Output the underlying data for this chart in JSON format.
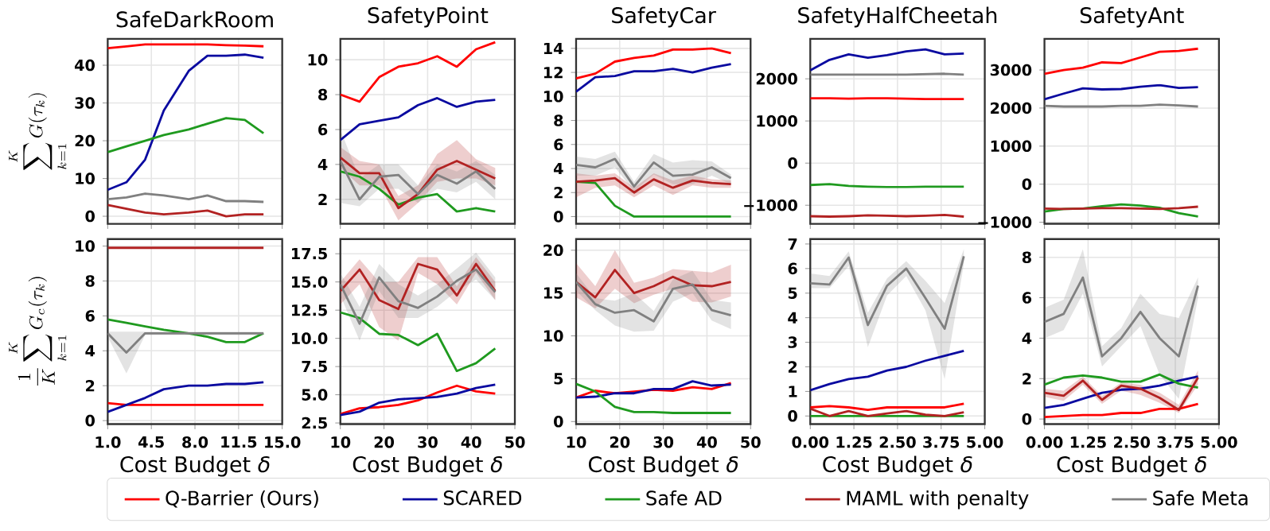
{
  "chart_data": [
    {
      "type": "line",
      "title": "SafeDarkRoom",
      "ylabel": "\\sum_{k=1}^{K} G(\\tau_k)",
      "grid": true,
      "tick_labels": "y",
      "xlim": [
        1,
        15
      ],
      "xticks": [
        1,
        4.5,
        8,
        11.5,
        15
      ],
      "ylim": [
        -2,
        47
      ],
      "yticks": [
        0,
        10,
        20,
        30,
        40
      ],
      "x": [
        1,
        2.5,
        4,
        5.5,
        7.5,
        9,
        10.5,
        12,
        13.5
      ],
      "series": [
        {
          "color": "#ff0000",
          "values": [
            44.5,
            45,
            45.5,
            45.5,
            45.5,
            45.5,
            45.3,
            45.2,
            45
          ]
        },
        {
          "color": "#0a0aa0",
          "values": [
            7,
            9,
            15,
            28,
            38.5,
            42.5,
            42.5,
            42.8,
            42
          ]
        },
        {
          "color": "#1f9a1f",
          "values": [
            17,
            18.5,
            20,
            21.5,
            23,
            24.5,
            26,
            25.5,
            22
          ]
        },
        {
          "color": "#b22222",
          "values": [
            3,
            2,
            1,
            0.5,
            1,
            1.5,
            0,
            0.5,
            0.5
          ]
        },
        {
          "color": "#808080",
          "values": [
            4.5,
            5,
            6,
            5.5,
            4.5,
            5.5,
            4,
            4,
            3.8
          ]
        }
      ]
    },
    {
      "type": "line",
      "title": "SafetyPoint",
      "grid": true,
      "tick_labels": "y",
      "xlim": [
        10,
        50
      ],
      "xticks": [
        10,
        20,
        30,
        40,
        50
      ],
      "ylim": [
        0.6,
        11.2
      ],
      "yticks": [
        2,
        4,
        6,
        8,
        10
      ],
      "x": [
        10,
        14.4,
        18.9,
        23.3,
        27.8,
        32.2,
        36.7,
        41.1,
        45.5
      ],
      "series": [
        {
          "color": "#ff0000",
          "values": [
            8,
            7.6,
            9,
            9.6,
            9.8,
            10.2,
            9.6,
            10.6,
            11
          ]
        },
        {
          "color": "#0a0aa0",
          "values": [
            5.4,
            6.3,
            6.5,
            6.7,
            7.4,
            7.8,
            7.3,
            7.6,
            7.7
          ]
        },
        {
          "color": "#1f9a1f",
          "values": [
            3.6,
            3.3,
            2.6,
            1.7,
            2.1,
            2.3,
            1.3,
            1.5,
            1.3
          ]
        },
        {
          "color": "#b22222",
          "values": [
            4.4,
            3.5,
            3.5,
            1.5,
            2.3,
            3.7,
            4.2,
            3.7,
            3.2
          ],
          "lower": [
            3.8,
            2.8,
            2.8,
            0.8,
            1.8,
            3,
            3.2,
            3.2,
            2.8
          ],
          "upper": [
            5,
            4.2,
            4,
            2.2,
            2.8,
            4.6,
            5.4,
            4.3,
            3.8
          ]
        },
        {
          "color": "#808080",
          "values": [
            4.2,
            2,
            3.3,
            3.4,
            2.3,
            3.4,
            2.9,
            3.6,
            2.6
          ],
          "lower": [
            1.8,
            1.6,
            2.6,
            2.6,
            1.8,
            2.6,
            2.4,
            3,
            2
          ],
          "upper": [
            6,
            3.2,
            4,
            4,
            2.8,
            4,
            3.6,
            4.2,
            3.4
          ]
        }
      ]
    },
    {
      "type": "line",
      "title": "SafetyCar",
      "grid": true,
      "tick_labels": "y",
      "xlim": [
        10,
        50
      ],
      "xticks": [
        10,
        20,
        30,
        40,
        50
      ],
      "ylim": [
        -0.6,
        14.8
      ],
      "yticks": [
        0,
        2,
        4,
        6,
        8,
        10,
        12,
        14
      ],
      "x": [
        10,
        14.4,
        18.9,
        23.3,
        27.8,
        32.2,
        36.7,
        41.1,
        45.5
      ],
      "series": [
        {
          "color": "#ff0000",
          "values": [
            11.5,
            11.9,
            12.9,
            13.2,
            13.4,
            13.9,
            13.9,
            14,
            13.6
          ]
        },
        {
          "color": "#0a0aa0",
          "values": [
            10.4,
            11.6,
            11.7,
            12.1,
            12.1,
            12.3,
            12,
            12.4,
            12.7
          ]
        },
        {
          "color": "#1f9a1f",
          "values": [
            2.9,
            2.8,
            0.9,
            0,
            0,
            0,
            0,
            0,
            0
          ]
        },
        {
          "color": "#b22222",
          "values": [
            2.9,
            3,
            3.2,
            2,
            3.1,
            2.4,
            3,
            2.8,
            2.7
          ],
          "lower": [
            1.6,
            2.4,
            2.6,
            1.6,
            2.6,
            1.8,
            2.6,
            2.4,
            2.4
          ],
          "upper": [
            3.6,
            3.4,
            3.6,
            2.4,
            3.6,
            3,
            3.4,
            3.1,
            3
          ]
        },
        {
          "color": "#808080",
          "values": [
            4.3,
            4.1,
            4.8,
            2.5,
            4.5,
            3.4,
            3.5,
            4.1,
            3.2
          ],
          "lower": [
            3.4,
            3.4,
            4.1,
            2.1,
            3.5,
            2.7,
            2.7,
            3.4,
            2.7
          ],
          "upper": [
            5,
            4.8,
            5.4,
            2.9,
            5.2,
            4.5,
            4.7,
            4.6,
            3.5
          ]
        }
      ]
    },
    {
      "type": "line",
      "title": "SafetyHalfCheetah",
      "grid": true,
      "tick_labels": "y",
      "xlim": [
        0,
        5
      ],
      "xticks": [
        0,
        1.25,
        2.5,
        3.75,
        5
      ],
      "ylim": [
        -1440,
        2950
      ],
      "yticks": [
        {
          "value": -1000,
          "label": "−1000"
        },
        0,
        1000,
        2000
      ],
      "x": [
        0,
        0.55,
        1.1,
        1.65,
        2.2,
        2.75,
        3.3,
        3.85,
        4.4
      ],
      "series": [
        {
          "color": "#ff0000",
          "values": [
            1540,
            1540,
            1530,
            1540,
            1540,
            1530,
            1520,
            1520,
            1520
          ]
        },
        {
          "color": "#0a0aa0",
          "values": [
            2200,
            2450,
            2580,
            2500,
            2560,
            2650,
            2700,
            2580,
            2600
          ]
        },
        {
          "color": "#1f9a1f",
          "values": [
            -520,
            -500,
            -540,
            -560,
            -570,
            -570,
            -560,
            -560,
            -560
          ]
        },
        {
          "color": "#b22222",
          "values": [
            -1260,
            -1270,
            -1260,
            -1240,
            -1250,
            -1260,
            -1250,
            -1230,
            -1270
          ]
        },
        {
          "color": "#808080",
          "values": [
            2100,
            2100,
            2100,
            2100,
            2100,
            2100,
            2110,
            2120,
            2100
          ]
        }
      ]
    },
    {
      "type": "line",
      "title": "SafetyAnt",
      "grid": true,
      "tick_labels": "y",
      "xlim": [
        0,
        5
      ],
      "xticks": [
        0,
        1.25,
        2.5,
        3.75,
        5
      ],
      "ylim": [
        -1040,
        3820
      ],
      "yticks": [
        {
          "value": -1000,
          "label": "−1000"
        },
        0,
        1000,
        2000,
        3000
      ],
      "x": [
        0,
        0.55,
        1.1,
        1.65,
        2.2,
        2.75,
        3.3,
        3.85,
        4.4
      ],
      "series": [
        {
          "color": "#ff0000",
          "values": [
            2900,
            3000,
            3060,
            3200,
            3180,
            3330,
            3480,
            3500,
            3560
          ]
        },
        {
          "color": "#0a0aa0",
          "values": [
            2230,
            2380,
            2520,
            2490,
            2500,
            2560,
            2600,
            2530,
            2550
          ]
        },
        {
          "color": "#1f9a1f",
          "values": [
            -720,
            -650,
            -640,
            -580,
            -530,
            -560,
            -620,
            -760,
            -850
          ]
        },
        {
          "color": "#b22222",
          "values": [
            -640,
            -650,
            -640,
            -630,
            -630,
            -640,
            -650,
            -630,
            -590
          ]
        },
        {
          "color": "#808080",
          "values": [
            2060,
            2040,
            2040,
            2040,
            2060,
            2060,
            2090,
            2070,
            2040
          ]
        }
      ]
    },
    {
      "type": "line",
      "xlabel": "Cost Budget *δ*",
      "ylabel": "\\frac{1}{K}\\sum_{k=1}^{K} G_c(\\tau_k)",
      "grid": true,
      "legend": "bottom",
      "xlim": [
        1,
        15
      ],
      "xticks": [
        {
          "value": 1,
          "label": "1.0"
        },
        4.5,
        {
          "value": 8,
          "label": "8.0"
        },
        11.5,
        {
          "value": 15,
          "label": "15.0"
        }
      ],
      "ylim": [
        -0.2,
        10.4
      ],
      "yticks": [
        0,
        2,
        4,
        6,
        8,
        10
      ],
      "x": [
        1,
        2.5,
        4,
        5.5,
        7.5,
        9,
        10.5,
        12,
        13.5
      ],
      "series": [
        {
          "name": "Q-Barrier (Ours)",
          "color": "#ff0000",
          "values": [
            1,
            0.9,
            0.9,
            0.9,
            0.9,
            0.9,
            0.9,
            0.9,
            0.9
          ]
        },
        {
          "name": "SCARED",
          "color": "#0a0aa0",
          "values": [
            0.5,
            0.9,
            1.3,
            1.8,
            2,
            2,
            2.1,
            2.1,
            2.2
          ]
        },
        {
          "name": "Safe AD",
          "color": "#1f9a1f",
          "values": [
            5.8,
            5.6,
            5.4,
            5.2,
            5,
            4.8,
            4.5,
            4.5,
            5
          ]
        },
        {
          "name": "MAML with penalty",
          "color": "#b22222",
          "values": [
            9.9,
            9.9,
            9.9,
            9.9,
            9.9,
            9.9,
            9.9,
            9.9,
            9.9
          ]
        },
        {
          "name": "Safe Meta",
          "color": "#808080",
          "values": [
            5,
            3.9,
            5,
            5,
            5,
            5,
            5,
            5,
            5
          ],
          "lower": [
            4.8,
            2.7,
            4.9,
            4.9,
            4.9,
            4.9,
            4.9,
            4.9,
            4.9
          ],
          "upper": [
            5.1,
            5.1,
            5.1,
            5.1,
            5.1,
            5.1,
            5.1,
            5.1,
            5.1
          ]
        }
      ]
    },
    {
      "type": "line",
      "xlabel": "Cost Budget *δ*",
      "grid": true,
      "xlim": [
        10,
        50
      ],
      "xticks": [
        10,
        20,
        30,
        40,
        50
      ],
      "ylim": [
        2.4,
        18.8
      ],
      "yticks": [
        {
          "value": 2.5,
          "label": "2.5"
        },
        {
          "value": 5,
          "label": "5.0"
        },
        {
          "value": 7.5,
          "label": "7.5"
        },
        {
          "value": 10,
          "label": "10.0"
        },
        {
          "value": 12.5,
          "label": "12.5"
        },
        {
          "value": 15,
          "label": "15.0"
        },
        {
          "value": 17.5,
          "label": "17.5"
        }
      ],
      "x": [
        10,
        14.4,
        18.9,
        23.3,
        27.8,
        32.2,
        36.7,
        41.1,
        45.5
      ],
      "series": [
        {
          "color": "#ff0000",
          "values": [
            3.3,
            3.8,
            3.9,
            4.1,
            4.5,
            5.2,
            5.8,
            5.3,
            5.1
          ]
        },
        {
          "color": "#0a0aa0",
          "values": [
            3.2,
            3.5,
            4.3,
            4.6,
            4.7,
            4.8,
            5.1,
            5.6,
            5.9
          ]
        },
        {
          "color": "#1f9a1f",
          "values": [
            12.3,
            11.8,
            10.4,
            10.3,
            9.4,
            10.4,
            7.1,
            7.8,
            9.1
          ]
        },
        {
          "color": "#b22222",
          "values": [
            14.2,
            16.1,
            13.4,
            12.6,
            16.6,
            16.1,
            13.8,
            16.6,
            14.2
          ],
          "lower": [
            13,
            14.8,
            11,
            9.8,
            15.8,
            14.8,
            13,
            15.8,
            13.4
          ],
          "upper": [
            15,
            17,
            15,
            15,
            17.2,
            17.2,
            14.6,
            17.2,
            15
          ]
        },
        {
          "color": "#808080",
          "values": [
            14.8,
            11.3,
            15.4,
            13.3,
            12.7,
            13.7,
            15.1,
            16.1,
            14.1
          ],
          "lower": [
            13.8,
            9.8,
            14.2,
            11.8,
            11.8,
            12.8,
            14.2,
            15.2,
            13.4
          ],
          "upper": [
            15.8,
            12.8,
            16.6,
            14.8,
            13.8,
            14.8,
            16.2,
            17.6,
            15.4
          ]
        }
      ]
    },
    {
      "type": "line",
      "xlabel": "Cost Budget *δ*",
      "grid": true,
      "xlim": [
        10,
        50
      ],
      "xticks": [
        10,
        20,
        30,
        40,
        50
      ],
      "ylim": [
        -0.3,
        21.3
      ],
      "yticks": [
        0,
        5,
        10,
        15,
        20
      ],
      "x": [
        10,
        14.4,
        18.9,
        23.3,
        27.8,
        32.2,
        36.7,
        41.1,
        45.5
      ],
      "series": [
        {
          "color": "#ff0000",
          "values": [
            2.8,
            3.6,
            3.3,
            3.5,
            3.7,
            3.6,
            4,
            3.8,
            4.5
          ]
        },
        {
          "color": "#0a0aa0",
          "values": [
            2.8,
            2.9,
            3.3,
            3.3,
            3.8,
            3.8,
            4.7,
            4.2,
            4.3
          ]
        },
        {
          "color": "#1f9a1f",
          "values": [
            4.4,
            3.5,
            1.7,
            1.1,
            1.1,
            1,
            1,
            1,
            1
          ]
        },
        {
          "color": "#b22222",
          "values": [
            16.3,
            14.5,
            17.7,
            15,
            15.8,
            16.9,
            15.9,
            15.8,
            16.3
          ],
          "lower": [
            14.5,
            13.2,
            15.5,
            13.8,
            14.8,
            15.5,
            14,
            13.9,
            14.6
          ],
          "upper": [
            18.5,
            15.8,
            20,
            16.2,
            16.8,
            17.8,
            17.6,
            17.4,
            18.3
          ]
        },
        {
          "color": "#808080",
          "values": [
            16.3,
            13.7,
            12.7,
            13,
            11.7,
            15.5,
            16,
            13,
            12.4
          ],
          "lower": [
            15.3,
            13,
            11.2,
            10.5,
            10.6,
            14,
            15,
            11.8,
            10.8
          ],
          "upper": [
            17.3,
            14.4,
            14.1,
            15,
            12.9,
            16.6,
            17.6,
            14.2,
            13.9
          ]
        }
      ]
    },
    {
      "type": "line",
      "xlabel": "Cost Budget *δ*",
      "grid": true,
      "xlim": [
        0,
        5
      ],
      "xticks": [
        {
          "value": 0,
          "label": "0.00"
        },
        1.25,
        {
          "value": 2.5,
          "label": "2.50"
        },
        3.75,
        {
          "value": 5,
          "label": "5.00"
        }
      ],
      "ylim": [
        -0.33,
        7.2
      ],
      "yticks": [
        0,
        1,
        2,
        3,
        4,
        5,
        6,
        7
      ],
      "x": [
        0,
        0.55,
        1.1,
        1.65,
        2.2,
        2.75,
        3.3,
        3.85,
        4.4
      ],
      "series": [
        {
          "color": "#ff0000",
          "values": [
            0.35,
            0.4,
            0.35,
            0.25,
            0.35,
            0.35,
            0.35,
            0.35,
            0.5
          ]
        },
        {
          "color": "#0a0aa0",
          "values": [
            1.05,
            1.3,
            1.5,
            1.6,
            1.85,
            2,
            2.25,
            2.45,
            2.65
          ]
        },
        {
          "color": "#1f9a1f",
          "values": [
            0,
            0,
            0,
            0,
            0,
            0,
            0,
            0,
            0
          ]
        },
        {
          "color": "#b22222",
          "values": [
            0.3,
            0,
            0.2,
            0,
            0.1,
            0.2,
            0.05,
            0,
            0.15
          ]
        },
        {
          "color": "#808080",
          "values": [
            5.4,
            5.35,
            6.45,
            3.7,
            5.3,
            6,
            4.8,
            3.55,
            6.5
          ],
          "lower": [
            5.2,
            5.2,
            6.1,
            2.8,
            4.9,
            5.7,
            4.3,
            1.5,
            6.2
          ],
          "upper": [
            5.8,
            5.7,
            6.7,
            4.2,
            5.6,
            6.3,
            5.5,
            4.6,
            6.8
          ]
        }
      ]
    },
    {
      "type": "line",
      "xlabel": "Cost Budget *δ*",
      "grid": true,
      "xlim": [
        0,
        5
      ],
      "xticks": [
        {
          "value": 0,
          "label": "0.00"
        },
        1.25,
        {
          "value": 2.5,
          "label": "2.50"
        },
        3.75,
        {
          "value": 5,
          "label": "5.00"
        }
      ],
      "ylim": [
        -0.25,
        8.9
      ],
      "yticks": [
        0,
        2,
        4,
        6,
        8
      ],
      "x": [
        0,
        0.55,
        1.1,
        1.65,
        2.2,
        2.75,
        3.3,
        3.85,
        4.4
      ],
      "series": [
        {
          "color": "#ff0000",
          "values": [
            0.1,
            0.15,
            0.2,
            0.2,
            0.3,
            0.3,
            0.5,
            0.5,
            0.75
          ]
        },
        {
          "color": "#0a0aa0",
          "values": [
            0.55,
            0.7,
            1,
            1.3,
            1.45,
            1.5,
            1.65,
            1.9,
            2.1
          ]
        },
        {
          "color": "#1f9a1f",
          "values": [
            1.7,
            2.05,
            2.15,
            2.05,
            1.85,
            1.85,
            2.2,
            1.75,
            1.55
          ]
        },
        {
          "color": "#b22222",
          "values": [
            1.3,
            1.15,
            1.9,
            0.95,
            1.65,
            1.5,
            1.05,
            0.45,
            2.05
          ],
          "lower": [
            1.1,
            0.9,
            1.7,
            0.75,
            1.4,
            1.2,
            0.8,
            0.3,
            1.7
          ],
          "upper": [
            1.5,
            1.4,
            2.1,
            1.15,
            1.8,
            1.7,
            1.3,
            0.7,
            2.4
          ]
        },
        {
          "color": "#808080",
          "values": [
            4.8,
            5.2,
            7,
            3.1,
            4,
            5.3,
            4,
            3.1,
            6.6
          ],
          "lower": [
            4,
            4.4,
            6.2,
            2.6,
            3.6,
            4.6,
            2.2,
            1,
            6
          ],
          "upper": [
            5.5,
            5.9,
            8.4,
            3.6,
            4.5,
            6.2,
            5.2,
            5,
            7
          ]
        }
      ]
    }
  ]
}
